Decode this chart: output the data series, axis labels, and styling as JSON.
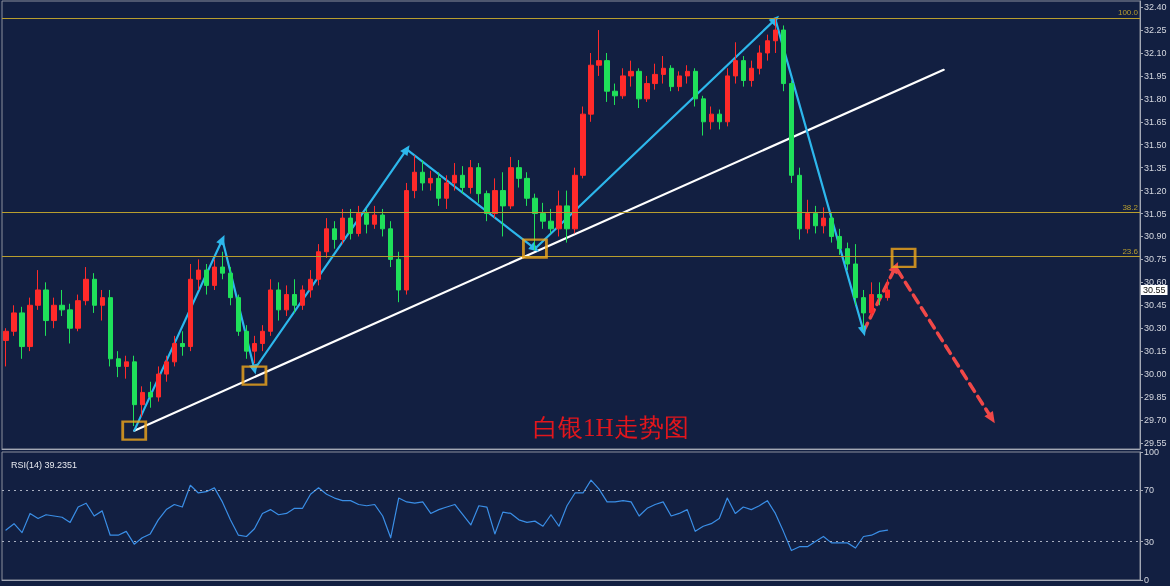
{
  "chart_data": [
    {
      "type": "candlestick",
      "title": "白银1H走势图",
      "categories": [
        null,
        null,
        null,
        null,
        null,
        null,
        null,
        null,
        null,
        null,
        null,
        null,
        null,
        null,
        null,
        null,
        null,
        null,
        null,
        null,
        null,
        null,
        null,
        null,
        null,
        null,
        null,
        null,
        null,
        null,
        null,
        null,
        null,
        null,
        null,
        null,
        null,
        null,
        null,
        null,
        null,
        null,
        null,
        null,
        null,
        null,
        null,
        null,
        null,
        null,
        null,
        null,
        null,
        null,
        null,
        null,
        null,
        null,
        null,
        null,
        null,
        null,
        null,
        null,
        null,
        null,
        null,
        null,
        null,
        null,
        null,
        null,
        null,
        null,
        null,
        null,
        null,
        null,
        null,
        null,
        null,
        null,
        null,
        null,
        null,
        null,
        null,
        null,
        null,
        null,
        null,
        null,
        null,
        null,
        null,
        null,
        null,
        null,
        null,
        null,
        null,
        null,
        null,
        null,
        null,
        null,
        null,
        null,
        null,
        null,
        null,
        null,
        null,
        null,
        null,
        null,
        null,
        null,
        null,
        null,
        null,
        null,
        null,
        null,
        null,
        null,
        null,
        null,
        null,
        null,
        null,
        null,
        null,
        null,
        null,
        null,
        null,
        null,
        null,
        null,
        null,
        null
      ],
      "ohlc": [
        [
          30.22,
          30.3,
          30.05,
          30.28
        ],
        [
          30.28,
          30.45,
          30.25,
          30.4
        ],
        [
          30.4,
          30.44,
          30.1,
          30.18
        ],
        [
          30.18,
          30.5,
          30.15,
          30.45
        ],
        [
          30.45,
          30.68,
          30.42,
          30.55
        ],
        [
          30.55,
          30.6,
          30.25,
          30.35
        ],
        [
          30.35,
          30.5,
          30.3,
          30.45
        ],
        [
          30.45,
          30.55,
          30.38,
          30.42
        ],
        [
          30.42,
          30.46,
          30.2,
          30.3
        ],
        [
          30.3,
          30.52,
          30.28,
          30.48
        ],
        [
          30.48,
          30.7,
          30.45,
          30.62
        ],
        [
          30.62,
          30.66,
          30.4,
          30.45
        ],
        [
          30.45,
          30.55,
          30.35,
          30.5
        ],
        [
          30.5,
          30.55,
          30.05,
          30.1
        ],
        [
          30.1,
          30.15,
          29.98,
          30.05
        ],
        [
          30.05,
          30.12,
          29.97,
          30.08
        ],
        [
          30.08,
          30.12,
          29.66,
          29.8
        ],
        [
          29.8,
          29.92,
          29.72,
          29.88
        ],
        [
          29.88,
          29.95,
          29.78,
          29.85
        ],
        [
          29.85,
          30.05,
          29.82,
          30.0
        ],
        [
          30.0,
          30.12,
          29.95,
          30.08
        ],
        [
          30.08,
          30.25,
          30.05,
          30.2
        ],
        [
          30.2,
          30.28,
          30.12,
          30.18
        ],
        [
          30.18,
          30.72,
          30.15,
          30.62
        ],
        [
          30.62,
          30.75,
          30.55,
          30.68
        ],
        [
          30.68,
          30.72,
          30.52,
          30.58
        ],
        [
          30.58,
          30.75,
          30.55,
          30.7
        ],
        [
          30.7,
          30.8,
          30.62,
          30.66
        ],
        [
          30.66,
          30.7,
          30.45,
          30.5
        ],
        [
          30.5,
          30.52,
          30.25,
          30.28
        ],
        [
          30.28,
          30.32,
          30.1,
          30.15
        ],
        [
          30.15,
          30.25,
          30.07,
          30.2
        ],
        [
          30.2,
          30.32,
          30.15,
          30.28
        ],
        [
          30.28,
          30.62,
          30.25,
          30.55
        ],
        [
          30.55,
          30.6,
          30.35,
          30.42
        ],
        [
          30.42,
          30.58,
          30.38,
          30.52
        ],
        [
          30.52,
          30.62,
          30.4,
          30.45
        ],
        [
          30.45,
          30.58,
          30.42,
          30.55
        ],
        [
          30.55,
          30.68,
          30.5,
          30.62
        ],
        [
          30.62,
          30.85,
          30.58,
          30.8
        ],
        [
          30.8,
          31.02,
          30.76,
          30.95
        ],
        [
          30.95,
          31.0,
          30.82,
          30.88
        ],
        [
          30.88,
          31.08,
          30.85,
          31.02
        ],
        [
          31.02,
          31.08,
          30.88,
          30.92
        ],
        [
          30.92,
          31.1,
          30.9,
          31.05
        ],
        [
          31.05,
          31.08,
          30.92,
          30.98
        ],
        [
          30.98,
          31.1,
          30.95,
          31.04
        ],
        [
          31.04,
          31.08,
          30.9,
          30.95
        ],
        [
          30.95,
          31.0,
          30.7,
          30.75
        ],
        [
          30.75,
          30.8,
          30.47,
          30.55
        ],
        [
          30.55,
          31.25,
          30.52,
          31.2
        ],
        [
          31.2,
          31.43,
          31.15,
          31.32
        ],
        [
          31.32,
          31.4,
          31.2,
          31.25
        ],
        [
          31.25,
          31.33,
          31.2,
          31.28
        ],
        [
          31.28,
          31.32,
          31.1,
          31.15
        ],
        [
          31.15,
          31.3,
          31.08,
          31.25
        ],
        [
          31.25,
          31.38,
          31.2,
          31.3
        ],
        [
          31.3,
          31.36,
          31.18,
          31.22
        ],
        [
          31.22,
          31.4,
          31.18,
          31.35
        ],
        [
          31.35,
          31.38,
          31.12,
          31.18
        ],
        [
          31.18,
          31.2,
          31.0,
          31.05
        ],
        [
          31.05,
          31.28,
          31.02,
          31.2
        ],
        [
          31.2,
          31.32,
          30.9,
          31.1
        ],
        [
          31.1,
          31.42,
          31.08,
          31.35
        ],
        [
          31.35,
          31.4,
          31.22,
          31.28
        ],
        [
          31.28,
          31.32,
          31.1,
          31.15
        ],
        [
          31.15,
          31.18,
          30.81,
          31.05
        ],
        [
          31.05,
          31.12,
          30.95,
          31.0
        ],
        [
          31.0,
          31.08,
          30.92,
          30.95
        ],
        [
          30.95,
          31.2,
          30.9,
          31.1
        ],
        [
          31.1,
          31.2,
          30.86,
          30.95
        ],
        [
          30.95,
          31.35,
          30.92,
          31.3
        ],
        [
          31.3,
          31.75,
          31.28,
          31.7
        ],
        [
          31.7,
          32.1,
          31.65,
          32.02
        ],
        [
          32.02,
          32.25,
          31.95,
          32.05
        ],
        [
          32.05,
          32.1,
          31.78,
          31.85
        ],
        [
          31.85,
          31.9,
          31.76,
          31.82
        ],
        [
          31.82,
          32.0,
          31.8,
          31.95
        ],
        [
          31.95,
          32.05,
          31.88,
          31.98
        ],
        [
          31.98,
          32.0,
          31.74,
          31.8
        ],
        [
          31.8,
          31.95,
          31.78,
          31.9
        ],
        [
          31.9,
          32.03,
          31.86,
          31.96
        ],
        [
          31.96,
          32.08,
          31.9,
          32.0
        ],
        [
          32.0,
          32.02,
          31.85,
          31.88
        ],
        [
          31.88,
          31.98,
          31.85,
          31.95
        ],
        [
          31.95,
          32.02,
          31.9,
          31.98
        ],
        [
          31.98,
          32.0,
          31.75,
          31.8
        ],
        [
          31.8,
          31.82,
          31.56,
          31.65
        ],
        [
          31.65,
          31.75,
          31.6,
          31.7
        ],
        [
          31.7,
          31.73,
          31.6,
          31.65
        ],
        [
          31.65,
          32.0,
          31.62,
          31.95
        ],
        [
          31.95,
          32.17,
          31.9,
          32.05
        ],
        [
          32.05,
          32.08,
          31.88,
          31.92
        ],
        [
          31.92,
          32.05,
          31.88,
          32.0
        ],
        [
          32.0,
          32.15,
          31.96,
          32.1
        ],
        [
          32.1,
          32.22,
          32.05,
          32.18
        ],
        [
          32.18,
          32.33,
          32.1,
          32.25
        ],
        [
          32.25,
          32.28,
          31.85,
          31.9
        ],
        [
          31.9,
          31.92,
          31.25,
          31.3
        ],
        [
          31.3,
          31.35,
          30.88,
          30.95
        ],
        [
          30.95,
          31.14,
          30.92,
          31.05
        ],
        [
          31.05,
          31.1,
          30.92,
          30.97
        ],
        [
          30.97,
          31.09,
          30.92,
          31.02
        ],
        [
          31.02,
          31.05,
          30.86,
          30.9
        ],
        [
          30.9,
          30.95,
          30.78,
          30.82
        ],
        [
          30.82,
          30.86,
          30.68,
          30.72
        ],
        [
          30.72,
          30.85,
          30.45,
          30.5
        ],
        [
          30.5,
          30.55,
          30.29,
          30.4
        ],
        [
          30.4,
          30.6,
          30.38,
          30.52
        ],
        [
          30.52,
          30.6,
          30.45,
          30.5
        ],
        [
          30.5,
          30.62,
          30.48,
          30.55
        ],
        null,
        null,
        null,
        null,
        null,
        null,
        null,
        null,
        null,
        null,
        null,
        null,
        null,
        null,
        null,
        null,
        null,
        null,
        null,
        null,
        null,
        null,
        null,
        null,
        null,
        null,
        null,
        null,
        null,
        null,
        null
      ],
      "colors": [
        "#ff2a2a",
        "#ff2a2a",
        "#1fe05a",
        "#ff2a2a",
        "#ff2a2a",
        "#1fe05a",
        "#ff2a2a",
        "#1fe05a",
        "#1fe05a",
        "#ff2a2a",
        "#ff2a2a",
        "#1fe05a",
        "#ff2a2a",
        "#1fe05a",
        "#1fe05a",
        "#ff2a2a",
        "#1fe05a",
        "#ff2a2a",
        "#1fe05a",
        "#ff2a2a",
        "#ff2a2a",
        "#ff2a2a",
        "#1fe05a",
        "#ff2a2a",
        "#ff2a2a",
        "#1fe05a",
        "#ff2a2a",
        "#1fe05a",
        "#1fe05a",
        "#1fe05a",
        "#1fe05a",
        "#ff2a2a",
        "#ff2a2a",
        "#ff2a2a",
        "#1fe05a",
        "#ff2a2a",
        "#1fe05a",
        "#ff2a2a",
        "#ff2a2a",
        "#ff2a2a",
        "#ff2a2a",
        "#1fe05a",
        "#ff2a2a",
        "#1fe05a",
        "#ff2a2a",
        "#1fe05a",
        "#ff2a2a",
        "#1fe05a",
        "#1fe05a",
        "#1fe05a",
        "#ff2a2a",
        "#ff2a2a",
        "#1fe05a",
        "#ff2a2a",
        "#1fe05a",
        "#ff2a2a",
        "#ff2a2a",
        "#1fe05a",
        "#ff2a2a",
        "#1fe05a",
        "#1fe05a",
        "#ff2a2a",
        "#1fe05a",
        "#ff2a2a",
        "#1fe05a",
        "#1fe05a",
        "#1fe05a",
        "#1fe05a",
        "#1fe05a",
        "#ff2a2a",
        "#1fe05a",
        "#ff2a2a",
        "#ff2a2a",
        "#ff2a2a",
        "#ff2a2a",
        "#1fe05a",
        "#1fe05a",
        "#ff2a2a",
        "#ff2a2a",
        "#1fe05a",
        "#ff2a2a",
        "#ff2a2a",
        "#ff2a2a",
        "#1fe05a",
        "#ff2a2a",
        "#ff2a2a",
        "#1fe05a",
        "#1fe05a",
        "#ff2a2a",
        "#1fe05a",
        "#ff2a2a",
        "#ff2a2a",
        "#1fe05a",
        "#ff2a2a",
        "#ff2a2a",
        "#ff2a2a",
        "#ff2a2a",
        "#1fe05a",
        "#1fe05a",
        "#1fe05a",
        "#ff2a2a",
        "#1fe05a",
        "#ff2a2a",
        "#1fe05a",
        "#1fe05a",
        "#1fe05a",
        "#1fe05a",
        "#1fe05a",
        "#ff2a2a",
        "#1fe05a",
        "#ff2a2a",
        null,
        null,
        null,
        null,
        null,
        null,
        null,
        null,
        null,
        null,
        null,
        null,
        null,
        null,
        null,
        null,
        null,
        null,
        null,
        null,
        null,
        null,
        null,
        null,
        null,
        null,
        null,
        null,
        null,
        null,
        null
      ],
      "series": [
        {
          "type": "line",
          "color": "#ffffff",
          "values": [
            null,
            null,
            null,
            null,
            null,
            null,
            null,
            null,
            null,
            null,
            null,
            null,
            null,
            null,
            null,
            null,
            29.63,
            null,
            null,
            null,
            null,
            null,
            null,
            null,
            null,
            null,
            null,
            null,
            null,
            null,
            null,
            null,
            null,
            null,
            null,
            null,
            null,
            null,
            null,
            null,
            null,
            null,
            null,
            null,
            null,
            null,
            null,
            null,
            null,
            null,
            null,
            null,
            null,
            null,
            null,
            null,
            null,
            null,
            null,
            null,
            null,
            null,
            null,
            null,
            null,
            null,
            null,
            null,
            null,
            null,
            null,
            null,
            null,
            null,
            null,
            null,
            null,
            null,
            null,
            null,
            null,
            null,
            null,
            null,
            null,
            null,
            null,
            null,
            null,
            null,
            null,
            null,
            null,
            null,
            null,
            null,
            null,
            null,
            null,
            null,
            null,
            null,
            null,
            null,
            null,
            null,
            null,
            null,
            null,
            null,
            null,
            null,
            null,
            null,
            null,
            null,
            null,
            31.99,
            null,
            null,
            null,
            null,
            null,
            null,
            null,
            null,
            null,
            null,
            null,
            null,
            null,
            null,
            null,
            null,
            null,
            null,
            null,
            null,
            null,
            null,
            null,
            null
          ]
        },
        {
          "type": "line",
          "color": "#2db7ec",
          "marker": "triangle",
          "values": [
            null,
            null,
            null,
            null,
            null,
            null,
            null,
            null,
            null,
            null,
            null,
            null,
            null,
            null,
            null,
            null,
            29.63,
            null,
            null,
            null,
            null,
            null,
            null,
            null,
            null,
            null,
            null,
            30.88,
            null,
            null,
            null,
            30.03,
            null,
            null,
            null,
            null,
            null,
            null,
            null,
            null,
            null,
            null,
            null,
            null,
            null,
            null,
            null,
            null,
            null,
            null,
            31.47,
            null,
            null,
            null,
            null,
            null,
            null,
            null,
            null,
            null,
            null,
            null,
            null,
            null,
            null,
            null,
            30.82,
            null,
            null,
            null,
            null,
            null,
            null,
            null,
            null,
            null,
            null,
            null,
            null,
            null,
            null,
            null,
            null,
            null,
            null,
            null,
            null,
            null,
            null,
            null,
            null,
            null,
            null,
            null,
            null,
            null,
            32.32,
            null,
            null,
            null,
            null,
            null,
            null,
            null,
            null,
            null,
            null,
            30.28,
            null,
            null,
            null,
            null,
            null,
            null,
            null,
            null,
            null,
            null,
            null,
            null,
            null,
            null,
            null,
            null,
            null,
            null,
            null,
            null,
            null,
            null,
            null,
            null,
            null,
            null,
            null,
            null,
            null,
            null,
            null,
            null,
            null,
            null
          ]
        },
        {
          "type": "line",
          "color": "#f04848",
          "marker": "triangle",
          "line_style": "dashed",
          "values": [
            null,
            null,
            null,
            null,
            null,
            null,
            null,
            null,
            null,
            null,
            null,
            null,
            null,
            null,
            null,
            null,
            null,
            null,
            null,
            null,
            null,
            null,
            null,
            null,
            null,
            null,
            null,
            null,
            null,
            null,
            null,
            null,
            null,
            null,
            null,
            null,
            null,
            null,
            null,
            null,
            null,
            null,
            null,
            null,
            null,
            null,
            null,
            null,
            null,
            null,
            null,
            null,
            null,
            null,
            null,
            null,
            null,
            null,
            null,
            null,
            null,
            null,
            null,
            null,
            null,
            null,
            null,
            null,
            null,
            null,
            null,
            null,
            null,
            null,
            null,
            null,
            null,
            null,
            null,
            null,
            null,
            null,
            null,
            null,
            null,
            null,
            null,
            null,
            null,
            null,
            null,
            null,
            null,
            null,
            null,
            null,
            null,
            null,
            null,
            null,
            null,
            null,
            null,
            null,
            null,
            null,
            null,
            30.28,
            null,
            null,
            null,
            30.7,
            null,
            null,
            null,
            null,
            null,
            null,
            null,
            null,
            null,
            null,
            null,
            29.71,
            null,
            null,
            null,
            null,
            null,
            null,
            null,
            null,
            null,
            null,
            null,
            null,
            null,
            null,
            null,
            null,
            null,
            null
          ]
        },
        {
          "type": "scatter",
          "color": "#f2a81a",
          "marker": "square",
          "values": [
            null,
            null,
            null,
            null,
            null,
            null,
            null,
            null,
            null,
            null,
            null,
            null,
            null,
            null,
            null,
            null,
            29.63,
            null,
            null,
            null,
            null,
            null,
            null,
            null,
            null,
            null,
            null,
            null,
            null,
            null,
            null,
            29.99,
            null,
            null,
            null,
            null,
            null,
            null,
            null,
            null,
            null,
            null,
            null,
            null,
            null,
            null,
            null,
            null,
            null,
            null,
            null,
            null,
            null,
            null,
            null,
            null,
            null,
            null,
            null,
            null,
            null,
            null,
            null,
            null,
            null,
            null,
            30.82,
            null,
            null,
            null,
            null,
            null,
            null,
            null,
            null,
            null,
            null,
            null,
            null,
            null,
            null,
            null,
            null,
            null,
            null,
            null,
            null,
            null,
            null,
            null,
            null,
            null,
            null,
            null,
            null,
            null,
            null,
            null,
            null,
            null,
            null,
            null,
            null,
            null,
            null,
            null,
            null,
            null,
            null,
            null,
            null,
            null,
            30.76,
            null,
            null,
            null,
            null,
            null,
            null,
            null,
            null,
            null,
            null,
            null,
            null,
            null,
            null,
            null,
            null,
            null,
            null,
            null,
            null,
            null,
            null,
            null,
            null,
            null,
            null,
            null,
            null,
            null
          ]
        }
      ],
      "ylim": [
        29.51,
        32.44
      ],
      "yticks": [
        29.55,
        {
          "value": 29.7,
          "label": "29.70"
        },
        29.85,
        {
          "value": 30,
          "label": "30.00"
        },
        30.15,
        {
          "value": 30.3,
          "label": "30.30"
        },
        30.45,
        {
          "value": 30.6,
          "label": "30.60"
        },
        30.75,
        {
          "value": 30.9,
          "label": "30.90"
        },
        31.05,
        {
          "value": 31.2,
          "label": "31.20"
        },
        31.35,
        {
          "value": 31.5,
          "label": "31.50"
        },
        31.65,
        {
          "value": 31.8,
          "label": "31.80"
        },
        31.95,
        {
          "value": 32.1,
          "label": "32.10"
        },
        32.25,
        {
          "value": 32.4,
          "label": "32.40"
        }
      ],
      "tick_labels": "y",
      "ref_lines": [
        {
          "axis": "y",
          "value": 32.33,
          "color": "#b89e2e"
        },
        {
          "axis": "y",
          "value": 31.06,
          "color": "#b89e2e"
        },
        {
          "axis": "y",
          "value": 30.77,
          "color": "#b89e2e"
        }
      ],
      "annotations": [
        {
          "text": "100.0",
          "y": 32.33
        },
        {
          "text": "38.2",
          "y": 31.06
        },
        {
          "text": "23.6",
          "y": 30.77
        },
        "30.55"
      ]
    },
    {
      "type": "line",
      "title": "RSI(14) 39.2351",
      "categories": [
        null,
        null,
        null,
        null,
        null,
        null,
        null,
        null,
        null,
        null,
        null,
        null,
        null,
        null,
        null,
        null,
        null,
        null,
        null,
        null,
        null,
        null,
        null,
        null,
        null,
        null,
        null,
        null,
        null,
        null,
        null,
        null,
        null,
        null,
        null,
        null,
        null,
        null,
        null,
        null,
        null,
        null,
        null,
        null,
        null,
        null,
        null,
        null,
        null,
        null,
        null,
        null,
        null,
        null,
        null,
        null,
        null,
        null,
        null,
        null,
        null,
        null,
        null,
        null,
        null,
        null,
        null,
        null,
        null,
        null,
        null,
        null,
        null,
        null,
        null,
        null,
        null,
        null,
        null,
        null,
        null,
        null,
        null,
        null,
        null,
        null,
        null,
        null,
        null,
        null,
        null,
        null,
        null,
        null,
        null,
        null,
        null,
        null,
        null,
        null,
        null,
        null,
        null,
        null,
        null,
        null,
        null,
        null,
        null,
        null,
        null,
        null,
        null,
        null,
        null,
        null,
        null,
        null,
        null,
        null,
        null,
        null,
        null,
        null,
        null,
        null,
        null,
        null,
        null,
        null,
        null,
        null,
        null,
        null,
        null,
        null,
        null,
        null,
        null,
        null,
        null,
        null
      ],
      "series": [
        {
          "color": "#3a8ee6",
          "values": [
            39,
            44,
            37,
            52,
            48,
            51,
            50,
            49,
            45,
            57,
            60,
            50,
            54,
            35,
            35,
            38,
            28,
            33,
            36,
            47,
            55,
            59,
            57,
            74,
            68,
            69,
            72,
            61,
            47,
            35,
            34,
            40,
            52,
            55,
            51,
            52,
            56,
            56,
            67,
            72,
            67,
            64,
            62,
            62,
            59,
            58,
            59,
            50,
            33,
            64,
            61,
            60,
            61,
            52,
            55,
            57,
            59,
            51,
            43,
            58,
            57,
            36,
            53,
            52,
            47,
            45,
            46,
            42,
            51,
            42,
            58,
            68,
            68,
            78,
            71,
            61,
            61,
            62,
            61,
            50,
            56,
            59,
            61,
            50,
            52,
            55,
            38,
            42,
            44,
            48,
            64,
            52,
            57,
            55,
            58,
            62,
            52,
            38,
            23,
            26,
            26,
            30,
            34,
            29,
            29,
            29,
            25,
            34,
            35,
            38,
            39,
            null,
            null,
            null,
            null,
            null,
            null,
            null,
            null,
            null,
            null,
            null,
            null,
            null,
            null,
            null,
            null,
            null,
            null,
            null,
            null,
            null,
            null,
            null,
            null,
            null,
            null,
            null,
            null,
            null,
            null,
            null
          ]
        }
      ],
      "ylim": [
        0,
        100
      ],
      "yticks": [
        0,
        30,
        70,
        100
      ],
      "tick_labels": "y",
      "ref_lines": [
        {
          "axis": "y",
          "value": 70,
          "color": "#a9afc0",
          "line_style": "dotted"
        },
        {
          "axis": "y",
          "value": 30,
          "color": "#a9afc0",
          "line_style": "dotted"
        }
      ]
    }
  ]
}
